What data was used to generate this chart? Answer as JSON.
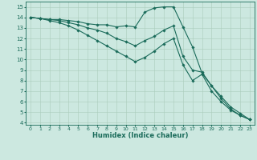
{
  "xlabel": "Humidex (Indice chaleur)",
  "background_color": "#cce8e0",
  "grid_color": "#aaccbb",
  "line_color": "#1a6b5a",
  "xlim": [
    -0.5,
    23.5
  ],
  "ylim": [
    3.8,
    15.5
  ],
  "x_ticks": [
    0,
    1,
    2,
    3,
    4,
    5,
    6,
    7,
    8,
    9,
    10,
    11,
    12,
    13,
    14,
    15,
    16,
    17,
    18,
    19,
    20,
    21,
    22,
    23
  ],
  "y_ticks": [
    4,
    5,
    6,
    7,
    8,
    9,
    10,
    11,
    12,
    13,
    14,
    15
  ],
  "series": [
    {
      "x": [
        0,
        1,
        2,
        3,
        4,
        5,
        6,
        7,
        8,
        9,
        10,
        11,
        12,
        13,
        14,
        15,
        16,
        17,
        18,
        19,
        20,
        21,
        22,
        23
      ],
      "y": [
        14.0,
        13.9,
        13.8,
        13.8,
        13.7,
        13.6,
        13.4,
        13.3,
        13.3,
        13.1,
        13.2,
        13.1,
        14.5,
        14.9,
        15.0,
        15.0,
        13.1,
        11.2,
        8.7,
        7.5,
        6.3,
        5.3,
        4.7,
        4.3
      ]
    },
    {
      "x": [
        0,
        1,
        2,
        3,
        4,
        5,
        6,
        7,
        8,
        9,
        10,
        11,
        12,
        13,
        14,
        15,
        16,
        17,
        18,
        19,
        20,
        21,
        22,
        23
      ],
      "y": [
        14.0,
        13.9,
        13.8,
        13.7,
        13.5,
        13.3,
        13.0,
        12.8,
        12.5,
        12.0,
        11.7,
        11.3,
        11.8,
        12.2,
        12.8,
        13.2,
        10.3,
        9.0,
        8.8,
        7.5,
        6.5,
        5.5,
        4.9,
        4.3
      ]
    },
    {
      "x": [
        0,
        1,
        2,
        3,
        4,
        5,
        6,
        7,
        8,
        9,
        10,
        11,
        12,
        13,
        14,
        15,
        16,
        17,
        18,
        19,
        20,
        21,
        22,
        23
      ],
      "y": [
        14.0,
        13.9,
        13.7,
        13.5,
        13.2,
        12.8,
        12.3,
        11.8,
        11.3,
        10.8,
        10.3,
        9.8,
        10.2,
        10.8,
        11.5,
        12.0,
        9.5,
        8.0,
        8.6,
        7.0,
        6.0,
        5.2,
        4.7,
        4.3
      ]
    }
  ]
}
